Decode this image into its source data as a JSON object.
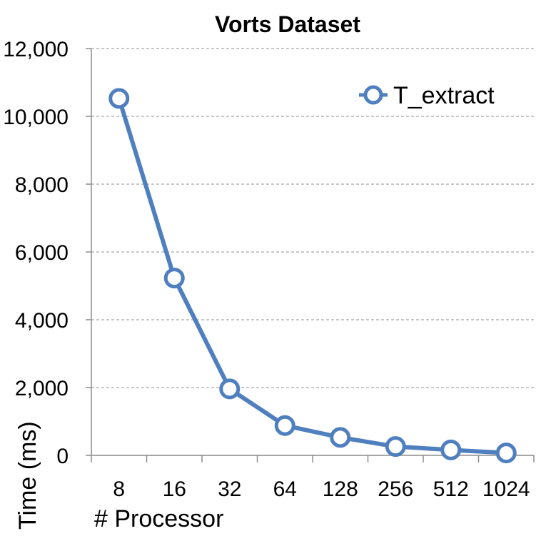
{
  "chart_data": {
    "type": "line",
    "title": "Vorts Dataset",
    "xlabel": "# Processor",
    "ylabel": "Time (ms)",
    "categories": [
      "8",
      "16",
      "32",
      "64",
      "128",
      "256",
      "512",
      "1024"
    ],
    "yticks": [
      "0",
      "2,000",
      "4,000",
      "6,000",
      "8,000",
      "10,000",
      "12,000"
    ],
    "ylim": [
      0,
      12000
    ],
    "grid": "horizontal dashed",
    "legend_position": "top-right",
    "series": [
      {
        "name": "T_extract",
        "values": [
          10530,
          5230,
          1960,
          880,
          530,
          260,
          160,
          70
        ],
        "color": "#4f7fbf",
        "marker": "hollow-circle"
      }
    ]
  }
}
